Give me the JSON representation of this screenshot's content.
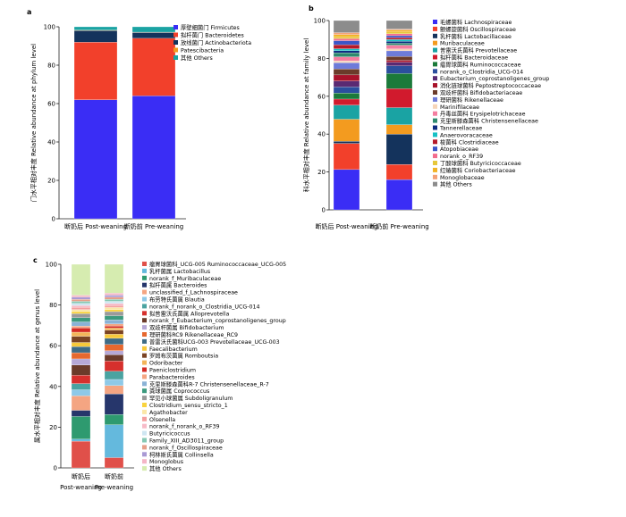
{
  "chart_data": [
    {
      "panel": "a",
      "type": "stacked-bar",
      "ylabel": "门水平相对丰度 Relative abundance at phylum level",
      "ylim": [
        0,
        100
      ],
      "yticks": [
        "0",
        "20",
        "40",
        "60",
        "80",
        "100"
      ],
      "categories": [
        "断奶后 Post-weaning",
        "断奶前 Pre-weaning"
      ],
      "series": [
        {
          "name": "厚壁细菌门 Firmicutes",
          "color": "#3a2df5",
          "values": [
            62.0,
            64.0
          ]
        },
        {
          "name": "拟杆菌门 Bacteroidetes",
          "color": "#f2402b",
          "values": [
            30.0,
            30.0
          ]
        },
        {
          "name": "放线菌门 Actinobacteriota",
          "color": "#14335c",
          "values": [
            6.0,
            3.0
          ]
        },
        {
          "name": "Patescibacteria",
          "color": "#f39b1f",
          "values": [
            0.3,
            0.2
          ]
        },
        {
          "name": "其他 Others",
          "color": "#1aa3a3",
          "values": [
            1.7,
            2.8
          ]
        }
      ]
    },
    {
      "panel": "b",
      "type": "stacked-bar",
      "ylabel": "科水平相对丰度 Relative abundance at family level",
      "ylim": [
        0,
        100
      ],
      "yticks": [
        "0",
        "20",
        "40",
        "60",
        "80",
        "100"
      ],
      "categories": [
        "断奶后 Post-weaning",
        "断奶前 Pre-weaning"
      ],
      "series": [
        {
          "name": "毛螺菌科 Lachnospiraceae",
          "color": "#3a2df5",
          "values": [
            20,
            16
          ]
        },
        {
          "name": "颤螺旋菌科 Oscillospiraceae",
          "color": "#f2402b",
          "values": [
            13,
            8
          ]
        },
        {
          "name": "乳杆菌科 Lactobacillaceae",
          "color": "#14335c",
          "values": [
            1,
            16
          ]
        },
        {
          "name": "Muribaculaceae",
          "color": "#f39b1f",
          "values": [
            11,
            5
          ]
        },
        {
          "name": "普雷沃氏菌科 Prevotellaceae",
          "color": "#1aa3a3",
          "values": [
            7,
            9
          ]
        },
        {
          "name": "拟杆菌科 Bacteroidaceae",
          "color": "#d11a2d",
          "values": [
            3,
            10
          ]
        },
        {
          "name": "瘤胃球菌科 Ruminococcaceae",
          "color": "#1b7a3a",
          "values": [
            3,
            8
          ]
        },
        {
          "name": "norank_o_Clostridia_UCG-014",
          "color": "#2b4f9e",
          "values": [
            3,
            4
          ]
        },
        {
          "name": "Eubacterium_coprostanoligenes_group",
          "color": "#5a2a73",
          "values": [
            3,
            2
          ]
        },
        {
          "name": "消化链球菌科 Peptostreptococcaceae",
          "color": "#a8122a",
          "values": [
            3,
            1
          ]
        },
        {
          "name": "双歧杆菌科 Bifidobacteriaceae",
          "color": "#6b3b2a",
          "values": [
            3,
            2
          ]
        },
        {
          "name": "理研菌科 Rikenellaceae",
          "color": "#6e7bd9",
          "values": [
            3,
            3
          ]
        },
        {
          "name": "Marinifilaceae",
          "color": "#f6d5b8",
          "values": [
            1,
            1
          ]
        },
        {
          "name": "丹毒丝菌科 Erysipelotrichaceae",
          "color": "#f47ea0",
          "values": [
            2,
            2
          ]
        },
        {
          "name": "克里斯滕森菌科 Christensenellaceae",
          "color": "#2e8a6e",
          "values": [
            2,
            1
          ]
        },
        {
          "name": "Tannerellaceae",
          "color": "#0d2b80",
          "values": [
            1,
            1
          ]
        },
        {
          "name": "Anaerovoracaceae",
          "color": "#16c0c4",
          "values": [
            1,
            1
          ]
        },
        {
          "name": "梭菌科 Clostridiaceae",
          "color": "#b51a2a",
          "values": [
            2,
            1
          ]
        },
        {
          "name": "Atopobiaceae",
          "color": "#3a55c8",
          "values": [
            2,
            1
          ]
        },
        {
          "name": "norank_o_RF39",
          "color": "#f36c8d",
          "values": [
            1,
            1
          ]
        },
        {
          "name": "丁酸球菌科 Butyricicoccaceae",
          "color": "#e6c73a",
          "values": [
            1,
            1
          ]
        },
        {
          "name": "红蝽菌科 Coriobacteriaceae",
          "color": "#f2b325",
          "values": [
            1,
            1
          ]
        },
        {
          "name": "Monoglobaceae",
          "color": "#f3a278",
          "values": [
            1,
            0.5
          ]
        },
        {
          "name": "其他 Others",
          "color": "#8c8c8c",
          "values": [
            6,
            4.5
          ]
        }
      ]
    },
    {
      "panel": "c",
      "type": "stacked-bar",
      "ylabel": "属水平相对丰度 Relative abundance at genus level",
      "ylim": [
        0,
        100
      ],
      "yticks": [
        "0",
        "20",
        "40",
        "60",
        "80",
        "100"
      ],
      "categories": [
        "断奶后",
        "断奶前"
      ],
      "category_sub": [
        "Post-weaning",
        "Pre-weaning"
      ],
      "series": [
        {
          "name": "瘤胃球菌科_UCG-005 Ruminococcaceae_UCG-005",
          "color": "#e0504a",
          "values": [
            13,
            5
          ]
        },
        {
          "name": "乳杆菌属 Lactobacillus",
          "color": "#64b9dd",
          "values": [
            1,
            16
          ]
        },
        {
          "name": "norank_f_Muribaculaceae",
          "color": "#2e9a6f",
          "values": [
            11,
            5
          ]
        },
        {
          "name": "拟杆菌属 Bacteroides",
          "color": "#26366b",
          "values": [
            3,
            10
          ]
        },
        {
          "name": "unclassified_f_Lachnospiraceae",
          "color": "#f4a582",
          "values": [
            7,
            4
          ]
        },
        {
          "name": "布劳特氏菌属 Blautia",
          "color": "#8ec9e8",
          "values": [
            3,
            3
          ]
        },
        {
          "name": "norank_f_norank_o_Clostridia_UCG-014",
          "color": "#4aa3a1",
          "values": [
            3,
            4
          ]
        },
        {
          "name": "拟普雷沃氏菌属 Alloprevotella",
          "color": "#d6302d",
          "values": [
            4,
            5
          ]
        },
        {
          "name": "norank_f_Eubacterium_coprostanoligenes_group",
          "color": "#6b3b2a",
          "values": [
            5,
            3
          ]
        },
        {
          "name": "双歧杆菌属 Bifidobacterium",
          "color": "#b6a8d6",
          "values": [
            3,
            2
          ]
        },
        {
          "name": "理研菌科RC9 Rikenellaceae_RC9",
          "color": "#e6682f",
          "values": [
            3,
            3
          ]
        },
        {
          "name": "普雷沃氏菌科UCG-003 Prevotellaceae_UCG-003",
          "color": "#3e6b86",
          "values": [
            3,
            3
          ]
        },
        {
          "name": "Faecalibacterium",
          "color": "#f7c93b",
          "values": [
            2,
            2
          ]
        },
        {
          "name": "罗姆布茨菌属 Romboutsia",
          "color": "#7b4424",
          "values": [
            3,
            2
          ]
        },
        {
          "name": "Odoribacter",
          "color": "#f3b55a",
          "values": [
            2,
            1
          ]
        },
        {
          "name": "Paeniclostridium",
          "color": "#d42a24",
          "values": [
            2,
            1
          ]
        },
        {
          "name": "Parabacteroides",
          "color": "#f4a582",
          "values": [
            1,
            1
          ]
        },
        {
          "name": "克里斯滕森菌科R-7 Christensenellaceae_R-7",
          "color": "#8ab2d6",
          "values": [
            2,
            2
          ]
        },
        {
          "name": "粪球菌属 Coprococcus",
          "color": "#3c9a7e",
          "values": [
            2,
            2
          ]
        },
        {
          "name": "罕见小球菌属 Subdoligranulum",
          "color": "#9a9a9a",
          "values": [
            2,
            2
          ]
        },
        {
          "name": "Clostridium_sensu_stricto_1",
          "color": "#f9d33d",
          "values": [
            1,
            1
          ]
        },
        {
          "name": "Agathobacter",
          "color": "#fbe7a7",
          "values": [
            1,
            1
          ]
        },
        {
          "name": "Olsenella",
          "color": "#f4a09f",
          "values": [
            1,
            1
          ]
        },
        {
          "name": "norank_f_norank_o_RF39",
          "color": "#f7bbc8",
          "values": [
            1,
            1
          ]
        },
        {
          "name": "Butyricicoccus",
          "color": "#cfe6f2",
          "values": [
            1,
            1
          ]
        },
        {
          "name": "Family_XIII_AD3011_group",
          "color": "#86c9b4",
          "values": [
            1,
            1
          ]
        },
        {
          "name": "norank_f_Oscillospiraceae",
          "color": "#e6a08a",
          "values": [
            1,
            1
          ]
        },
        {
          "name": "柯林斯氏菌属 Collinsella",
          "color": "#a99ad4",
          "values": [
            1,
            1
          ]
        },
        {
          "name": "Monoglobus",
          "color": "#f4b6c6",
          "values": [
            1,
            1
          ]
        },
        {
          "name": "其他 Others",
          "color": "#d6ecb0",
          "values": [
            15,
            14
          ]
        }
      ]
    }
  ]
}
